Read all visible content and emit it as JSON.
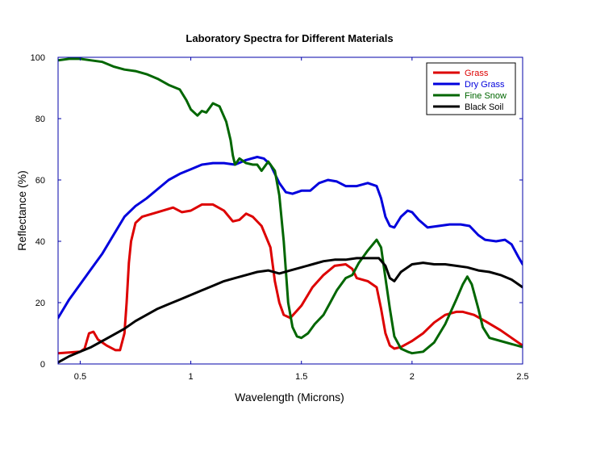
{
  "chart_data": {
    "type": "line",
    "title": "Laboratory Spectra for Different Materials",
    "xlabel": "Wavelength (Microns)",
    "ylabel": "Reflectance (%)",
    "xlim": [
      0.4,
      2.5
    ],
    "ylim": [
      0,
      100
    ],
    "x_ticks": [
      0.5,
      1,
      1.5,
      2,
      2.5
    ],
    "x_tick_labels": [
      "0.5",
      "1",
      "1.5",
      "2",
      "2.5"
    ],
    "y_ticks": [
      0,
      20,
      40,
      60,
      80,
      100
    ],
    "y_tick_labels": [
      "0",
      "20",
      "40",
      "60",
      "80",
      "100"
    ],
    "grid": false,
    "legend_position": "top-right",
    "axis_color": "#0000aa",
    "series": [
      {
        "name": "Grass",
        "color": "#dd0000",
        "points": [
          [
            0.4,
            3.5
          ],
          [
            0.5,
            4.0
          ],
          [
            0.52,
            5.0
          ],
          [
            0.54,
            10.0
          ],
          [
            0.56,
            10.5
          ],
          [
            0.58,
            8.0
          ],
          [
            0.62,
            6.0
          ],
          [
            0.66,
            4.5
          ],
          [
            0.68,
            4.5
          ],
          [
            0.7,
            10.0
          ],
          [
            0.71,
            20.0
          ],
          [
            0.72,
            33.0
          ],
          [
            0.73,
            40.0
          ],
          [
            0.75,
            46.0
          ],
          [
            0.78,
            48.0
          ],
          [
            0.85,
            49.5
          ],
          [
            0.92,
            51.0
          ],
          [
            0.96,
            49.5
          ],
          [
            1.0,
            50.0
          ],
          [
            1.05,
            52.0
          ],
          [
            1.1,
            52.0
          ],
          [
            1.15,
            50.0
          ],
          [
            1.19,
            46.5
          ],
          [
            1.22,
            47.0
          ],
          [
            1.25,
            49.0
          ],
          [
            1.28,
            48.0
          ],
          [
            1.32,
            45.0
          ],
          [
            1.36,
            38.0
          ],
          [
            1.38,
            27.0
          ],
          [
            1.4,
            20.0
          ],
          [
            1.42,
            16.0
          ],
          [
            1.45,
            15.0
          ],
          [
            1.5,
            19.0
          ],
          [
            1.55,
            25.0
          ],
          [
            1.6,
            29.0
          ],
          [
            1.65,
            32.0
          ],
          [
            1.7,
            32.5
          ],
          [
            1.73,
            31.0
          ],
          [
            1.75,
            28.0
          ],
          [
            1.8,
            27.0
          ],
          [
            1.84,
            25.0
          ],
          [
            1.86,
            18.0
          ],
          [
            1.88,
            10.0
          ],
          [
            1.9,
            6.0
          ],
          [
            1.92,
            5.0
          ],
          [
            1.95,
            5.5
          ],
          [
            2.0,
            7.5
          ],
          [
            2.05,
            10.0
          ],
          [
            2.1,
            13.5
          ],
          [
            2.15,
            16.0
          ],
          [
            2.2,
            17.0
          ],
          [
            2.23,
            17.0
          ],
          [
            2.28,
            16.0
          ],
          [
            2.33,
            14.0
          ],
          [
            2.4,
            11.0
          ],
          [
            2.45,
            8.5
          ],
          [
            2.5,
            6.0
          ]
        ]
      },
      {
        "name": "Dry Grass",
        "color": "#0000dd",
        "points": [
          [
            0.4,
            15.0
          ],
          [
            0.45,
            21.0
          ],
          [
            0.5,
            26.0
          ],
          [
            0.55,
            31.0
          ],
          [
            0.6,
            36.0
          ],
          [
            0.65,
            42.0
          ],
          [
            0.7,
            48.0
          ],
          [
            0.75,
            51.5
          ],
          [
            0.8,
            54.0
          ],
          [
            0.85,
            57.0
          ],
          [
            0.9,
            60.0
          ],
          [
            0.95,
            62.0
          ],
          [
            1.0,
            63.5
          ],
          [
            1.05,
            65.0
          ],
          [
            1.1,
            65.5
          ],
          [
            1.15,
            65.5
          ],
          [
            1.2,
            65.0
          ],
          [
            1.25,
            66.5
          ],
          [
            1.3,
            67.5
          ],
          [
            1.33,
            67.0
          ],
          [
            1.36,
            65.0
          ],
          [
            1.4,
            59.0
          ],
          [
            1.43,
            56.0
          ],
          [
            1.46,
            55.5
          ],
          [
            1.5,
            56.5
          ],
          [
            1.54,
            56.5
          ],
          [
            1.58,
            59.0
          ],
          [
            1.62,
            60.0
          ],
          [
            1.66,
            59.5
          ],
          [
            1.7,
            58.0
          ],
          [
            1.75,
            58.0
          ],
          [
            1.8,
            59.0
          ],
          [
            1.84,
            58.0
          ],
          [
            1.86,
            54.0
          ],
          [
            1.88,
            48.0
          ],
          [
            1.9,
            45.0
          ],
          [
            1.92,
            44.5
          ],
          [
            1.95,
            48.0
          ],
          [
            1.98,
            50.0
          ],
          [
            2.0,
            49.5
          ],
          [
            2.03,
            47.0
          ],
          [
            2.07,
            44.5
          ],
          [
            2.12,
            45.0
          ],
          [
            2.17,
            45.5
          ],
          [
            2.22,
            45.5
          ],
          [
            2.26,
            45.0
          ],
          [
            2.3,
            42.0
          ],
          [
            2.33,
            40.5
          ],
          [
            2.38,
            40.0
          ],
          [
            2.42,
            40.5
          ],
          [
            2.45,
            39.0
          ],
          [
            2.48,
            35.0
          ],
          [
            2.5,
            32.5
          ]
        ]
      },
      {
        "name": "Fine Snow",
        "color": "#006600",
        "points": [
          [
            0.4,
            99.0
          ],
          [
            0.45,
            99.5
          ],
          [
            0.5,
            99.5
          ],
          [
            0.55,
            99.0
          ],
          [
            0.6,
            98.5
          ],
          [
            0.65,
            97.0
          ],
          [
            0.7,
            96.0
          ],
          [
            0.75,
            95.5
          ],
          [
            0.8,
            94.5
          ],
          [
            0.85,
            93.0
          ],
          [
            0.9,
            91.0
          ],
          [
            0.95,
            89.5
          ],
          [
            0.98,
            86.0
          ],
          [
            1.0,
            83.0
          ],
          [
            1.03,
            81.0
          ],
          [
            1.05,
            82.5
          ],
          [
            1.07,
            82.0
          ],
          [
            1.1,
            85.0
          ],
          [
            1.13,
            84.0
          ],
          [
            1.16,
            79.0
          ],
          [
            1.18,
            73.0
          ],
          [
            1.19,
            68.0
          ],
          [
            1.2,
            65.0
          ],
          [
            1.22,
            67.0
          ],
          [
            1.25,
            65.5
          ],
          [
            1.28,
            65.0
          ],
          [
            1.3,
            65.0
          ],
          [
            1.32,
            63.0
          ],
          [
            1.35,
            66.0
          ],
          [
            1.38,
            63.0
          ],
          [
            1.4,
            55.0
          ],
          [
            1.42,
            40.0
          ],
          [
            1.44,
            20.0
          ],
          [
            1.46,
            12.0
          ],
          [
            1.48,
            9.0
          ],
          [
            1.5,
            8.5
          ],
          [
            1.53,
            10.0
          ],
          [
            1.56,
            13.0
          ],
          [
            1.6,
            16.0
          ],
          [
            1.63,
            20.0
          ],
          [
            1.66,
            24.0
          ],
          [
            1.7,
            28.0
          ],
          [
            1.73,
            29.0
          ],
          [
            1.76,
            33.0
          ],
          [
            1.8,
            37.0
          ],
          [
            1.84,
            40.5
          ],
          [
            1.86,
            38.0
          ],
          [
            1.88,
            28.0
          ],
          [
            1.9,
            18.0
          ],
          [
            1.92,
            9.0
          ],
          [
            1.95,
            5.0
          ],
          [
            1.98,
            4.0
          ],
          [
            2.0,
            3.5
          ],
          [
            2.05,
            4.0
          ],
          [
            2.1,
            7.0
          ],
          [
            2.15,
            13.0
          ],
          [
            2.2,
            21.0
          ],
          [
            2.23,
            26.0
          ],
          [
            2.25,
            28.5
          ],
          [
            2.27,
            26.0
          ],
          [
            2.3,
            18.0
          ],
          [
            2.32,
            12.0
          ],
          [
            2.35,
            8.5
          ],
          [
            2.4,
            7.5
          ],
          [
            2.45,
            6.5
          ],
          [
            2.5,
            5.5
          ]
        ]
      },
      {
        "name": "Black Soil",
        "color": "#000000",
        "points": [
          [
            0.4,
            0.5
          ],
          [
            0.45,
            2.5
          ],
          [
            0.5,
            4.0
          ],
          [
            0.55,
            5.5
          ],
          [
            0.6,
            7.5
          ],
          [
            0.65,
            9.5
          ],
          [
            0.7,
            11.5
          ],
          [
            0.75,
            14.0
          ],
          [
            0.8,
            16.0
          ],
          [
            0.85,
            18.0
          ],
          [
            0.9,
            19.5
          ],
          [
            0.95,
            21.0
          ],
          [
            1.0,
            22.5
          ],
          [
            1.05,
            24.0
          ],
          [
            1.1,
            25.5
          ],
          [
            1.15,
            27.0
          ],
          [
            1.2,
            28.0
          ],
          [
            1.25,
            29.0
          ],
          [
            1.3,
            30.0
          ],
          [
            1.35,
            30.5
          ],
          [
            1.4,
            29.5
          ],
          [
            1.45,
            30.5
          ],
          [
            1.5,
            31.5
          ],
          [
            1.55,
            32.5
          ],
          [
            1.6,
            33.5
          ],
          [
            1.65,
            34.0
          ],
          [
            1.7,
            34.0
          ],
          [
            1.75,
            34.5
          ],
          [
            1.8,
            34.5
          ],
          [
            1.85,
            34.5
          ],
          [
            1.88,
            32.0
          ],
          [
            1.9,
            28.0
          ],
          [
            1.92,
            27.0
          ],
          [
            1.95,
            30.0
          ],
          [
            2.0,
            32.5
          ],
          [
            2.05,
            33.0
          ],
          [
            2.1,
            32.5
          ],
          [
            2.15,
            32.5
          ],
          [
            2.2,
            32.0
          ],
          [
            2.25,
            31.5
          ],
          [
            2.3,
            30.5
          ],
          [
            2.35,
            30.0
          ],
          [
            2.4,
            29.0
          ],
          [
            2.45,
            27.5
          ],
          [
            2.5,
            25.0
          ]
        ]
      }
    ]
  }
}
